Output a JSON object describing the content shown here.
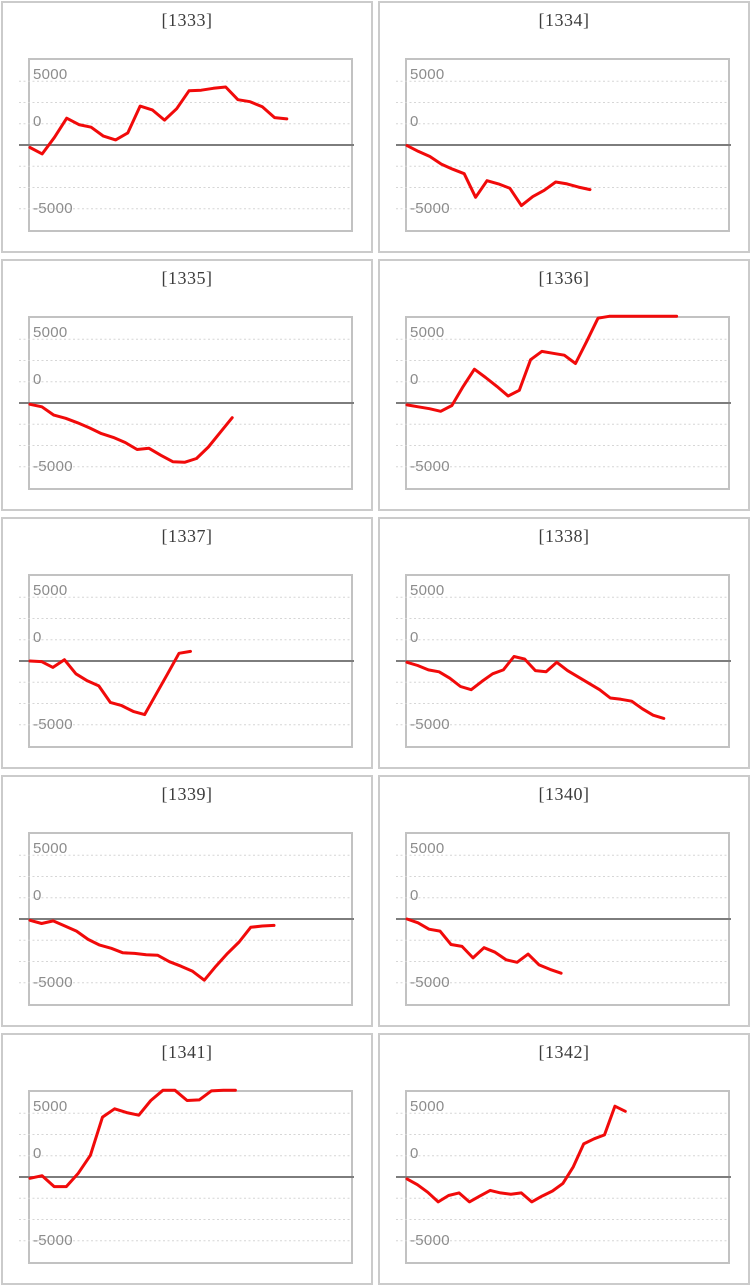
{
  "axis": {
    "tick_labels": [
      "5000",
      "0",
      "-5000"
    ],
    "ylim": [
      -6667,
      6667
    ],
    "gridline_values": [
      5000,
      3333,
      1667,
      0,
      -1667,
      -3333,
      -5000
    ],
    "zero_line": true,
    "grid": "dashed"
  },
  "style": {
    "line_color": "#f10a0a",
    "clipped_line_color": "#f3a8a8",
    "zero_line_color": "#7d7d7d",
    "grid_color": "#d6d6d6",
    "plot_border_color": "#c2c2c2",
    "panel_border_color": "#cbcbcb",
    "title_color": "#3c3c3c",
    "tick_color": "#8c8c8c",
    "background": "#ffffff"
  },
  "chart_data": [
    {
      "type": "line",
      "title": "[1333]",
      "x_span_fraction": 0.8,
      "values": [
        -200,
        -700,
        600,
        2100,
        1600,
        1400,
        700,
        400,
        950,
        3050,
        2750,
        1950,
        2850,
        4250,
        4300,
        4450,
        4550,
        3550,
        3400,
        3000,
        2150,
        2050
      ]
    },
    {
      "type": "line",
      "title": "[1334]",
      "x_span_fraction": 0.57,
      "values": [
        -50,
        -500,
        -900,
        -1500,
        -1900,
        -2250,
        -4100,
        -2800,
        -3050,
        -3400,
        -4750,
        -4050,
        -3550,
        -2900,
        -3050,
        -3300,
        -3500
      ]
    },
    {
      "type": "line",
      "title": "[1335]",
      "x_span_fraction": 0.63,
      "values": [
        -100,
        -300,
        -950,
        -1200,
        -1550,
        -1950,
        -2400,
        -2700,
        -3100,
        -3650,
        -3550,
        -4100,
        -4600,
        -4650,
        -4350,
        -3450,
        -2300,
        -1150
      ]
    },
    {
      "type": "line",
      "title": "[1336]",
      "x_span_fraction": 0.84,
      "values": [
        -150,
        -300,
        -450,
        -650,
        -200,
        1300,
        2650,
        2000,
        1300,
        550,
        1000,
        3400,
        4050,
        3900,
        3750,
        3100,
        4850,
        6650,
        6900,
        6900,
        6900,
        6900,
        6900,
        6900,
        6900
      ]
    },
    {
      "type": "line",
      "title": "[1337]",
      "x_span_fraction": 0.5,
      "values": [
        0,
        -50,
        -500,
        100,
        -1000,
        -1550,
        -1950,
        -3250,
        -3500,
        -3950,
        -4200,
        -2600,
        -1000,
        600,
        750
      ]
    },
    {
      "type": "line",
      "title": "[1338]",
      "x_span_fraction": 0.8,
      "values": [
        -100,
        -350,
        -700,
        -850,
        -1350,
        -2000,
        -2250,
        -1600,
        -1000,
        -700,
        350,
        150,
        -750,
        -850,
        -100,
        -750,
        -1250,
        -1750,
        -2250,
        -2900,
        -3000,
        -3150,
        -3750,
        -4250,
        -4500
      ]
    },
    {
      "type": "line",
      "title": "[1339]",
      "x_span_fraction": 0.76,
      "values": [
        -100,
        -350,
        -150,
        -550,
        -950,
        -1600,
        -2050,
        -2300,
        -2650,
        -2700,
        -2800,
        -2850,
        -3350,
        -3700,
        -4100,
        -4800,
        -3700,
        -2700,
        -1800,
        -650,
        -550,
        -500
      ]
    },
    {
      "type": "line",
      "title": "[1340]",
      "x_span_fraction": 0.48,
      "values": [
        0,
        -300,
        -800,
        -950,
        -2000,
        -2150,
        -3050,
        -2250,
        -2600,
        -3200,
        -3400,
        -2750,
        -3600,
        -3950,
        -4250
      ]
    },
    {
      "type": "line",
      "title": "[1341]",
      "x_span_fraction": 0.64,
      "values": [
        -100,
        100,
        -750,
        -750,
        300,
        1700,
        4700,
        5350,
        5050,
        4850,
        6000,
        6850,
        6800,
        6000,
        6050,
        6750,
        6800,
        6800
      ]
    },
    {
      "type": "line",
      "title": "[1342]",
      "x_span_fraction": 0.68,
      "values": [
        -150,
        -600,
        -1200,
        -1950,
        -1450,
        -1250,
        -1950,
        -1500,
        -1050,
        -1250,
        -1350,
        -1250,
        -1950,
        -1500,
        -1100,
        -500,
        800,
        2600,
        3000,
        3300,
        5550,
        5150
      ]
    }
  ]
}
